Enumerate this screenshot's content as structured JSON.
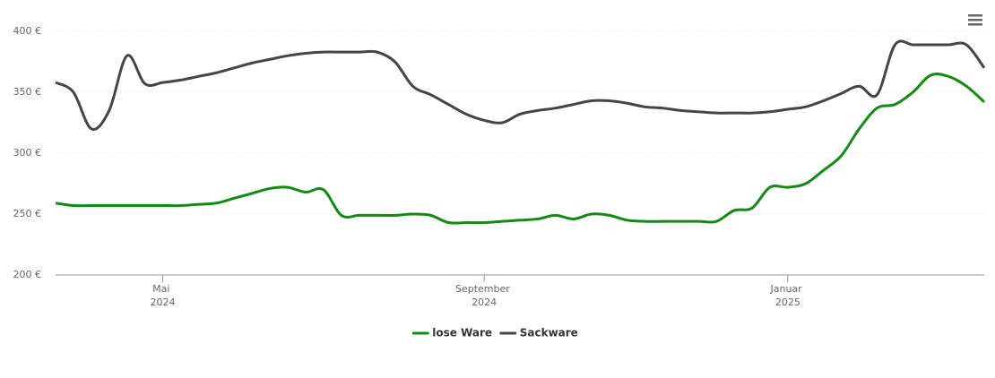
{
  "chart_data": {
    "type": "line",
    "categories": [
      null,
      null,
      null,
      null,
      null,
      null,
      "Mai 2024",
      null,
      null,
      null,
      null,
      null,
      null,
      null,
      null,
      null,
      null,
      null,
      null,
      null,
      null,
      null,
      null,
      null,
      "September 2024",
      null,
      null,
      null,
      null,
      null,
      null,
      null,
      null,
      null,
      null,
      null,
      null,
      null,
      null,
      null,
      null,
      "Januar 2025",
      null,
      null,
      null,
      null,
      null,
      null,
      null,
      null,
      null,
      null,
      null
    ],
    "series": [
      {
        "name": "lose Ware",
        "color": "#138a13",
        "values": [
          259,
          257,
          257,
          257,
          257,
          257,
          257,
          257,
          258,
          259,
          263,
          267,
          271,
          272,
          268,
          270,
          249,
          249,
          249,
          249,
          250,
          249,
          243,
          243,
          243,
          244,
          245,
          246,
          249,
          246,
          250,
          249,
          245,
          244,
          244,
          244,
          244,
          244,
          253,
          255,
          272,
          272,
          275,
          286,
          298,
          320,
          337,
          340,
          350,
          364,
          363,
          355,
          342
        ]
      },
      {
        "name": "Sackware",
        "color": "#454545",
        "values": [
          358,
          350,
          320,
          335,
          380,
          357,
          358,
          360,
          363,
          366,
          370,
          374,
          377,
          380,
          382,
          383,
          383,
          383,
          383,
          375,
          355,
          348,
          340,
          332,
          327,
          325,
          332,
          335,
          337,
          340,
          343,
          343,
          341,
          338,
          337,
          335,
          334,
          333,
          333,
          333,
          334,
          336,
          338,
          343,
          349,
          355,
          348,
          389,
          389,
          389,
          389,
          389,
          370
        ]
      }
    ],
    "ylim": [
      200,
      400
    ],
    "yticks": [
      {
        "value": 200,
        "label": "200 €"
      },
      {
        "value": 250,
        "label": "250 €"
      },
      {
        "value": 300,
        "label": "300 €"
      },
      {
        "value": 350,
        "label": "350 €"
      },
      {
        "value": 400,
        "label": "400 €"
      }
    ],
    "grid": true,
    "legend": "bottom"
  }
}
